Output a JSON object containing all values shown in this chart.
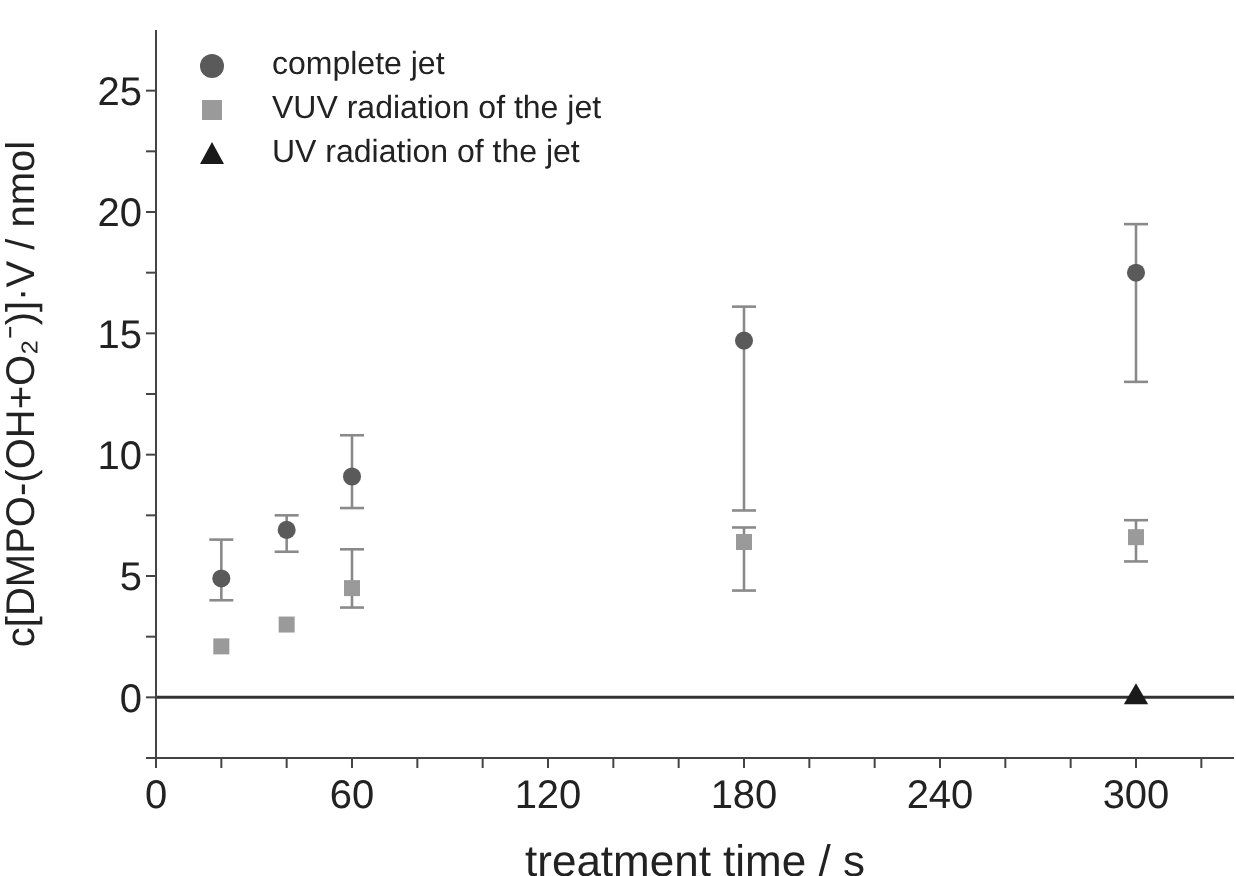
{
  "chart_data": {
    "type": "scatter",
    "xlabel": "treatment time / s",
    "ylabel": "c[DMPO-(OH+O₂⁻)]·V / nmol",
    "x": [
      20,
      40,
      60,
      180,
      300
    ],
    "series": [
      {
        "name": "complete jet",
        "color": "#5a5a5a",
        "marker": "circle",
        "values": [
          4.9,
          6.9,
          9.1,
          14.7,
          17.5
        ],
        "errors": [
          [
            4.0,
            6.5
          ],
          [
            6.0,
            7.5
          ],
          [
            7.8,
            10.8
          ],
          [
            7.7,
            16.1
          ],
          [
            13.0,
            19.5
          ]
        ]
      },
      {
        "name": "VUV radiation of the jet",
        "color": "#9a9a9a",
        "marker": "square",
        "values": [
          2.1,
          3.0,
          4.5,
          6.4,
          6.6
        ],
        "errors": [
          null,
          null,
          [
            3.7,
            6.1
          ],
          [
            4.4,
            7.0
          ],
          [
            5.6,
            7.3
          ]
        ]
      },
      {
        "name": "UV radiation of the jet",
        "color": "#1a1a1a",
        "marker": "triangle",
        "x": [
          300
        ],
        "values": [
          0
        ]
      }
    ],
    "xlim": [
      0,
      330
    ],
    "xticks": [
      0,
      {
        "value": 20,
        "label": null
      },
      {
        "value": 40,
        "label": null
      },
      60,
      {
        "value": 80,
        "label": null
      },
      {
        "value": 100,
        "label": null
      },
      120,
      {
        "value": 140,
        "label": null
      },
      {
        "value": 160,
        "label": null
      },
      180,
      {
        "value": 200,
        "label": null
      },
      {
        "value": 220,
        "label": null
      },
      240,
      {
        "value": 260,
        "label": null
      },
      {
        "value": 280,
        "label": null
      },
      300,
      {
        "value": 320,
        "label": null
      }
    ],
    "ylim": [
      -2.5,
      27.5
    ],
    "yticks": [
      {
        "value": -2.5,
        "label": null
      },
      0,
      {
        "value": 2.5,
        "label": null
      },
      5,
      {
        "value": 7.5,
        "label": null
      },
      10,
      {
        "value": 12.5,
        "label": null
      },
      15,
      {
        "value": 17.5,
        "label": null
      },
      20,
      {
        "value": 22.5,
        "label": null
      },
      25
    ],
    "ref_lines": [
      {
        "axis": "y",
        "value": 0,
        "color": "#333333"
      }
    ],
    "legend": "top left",
    "grid": false
  }
}
